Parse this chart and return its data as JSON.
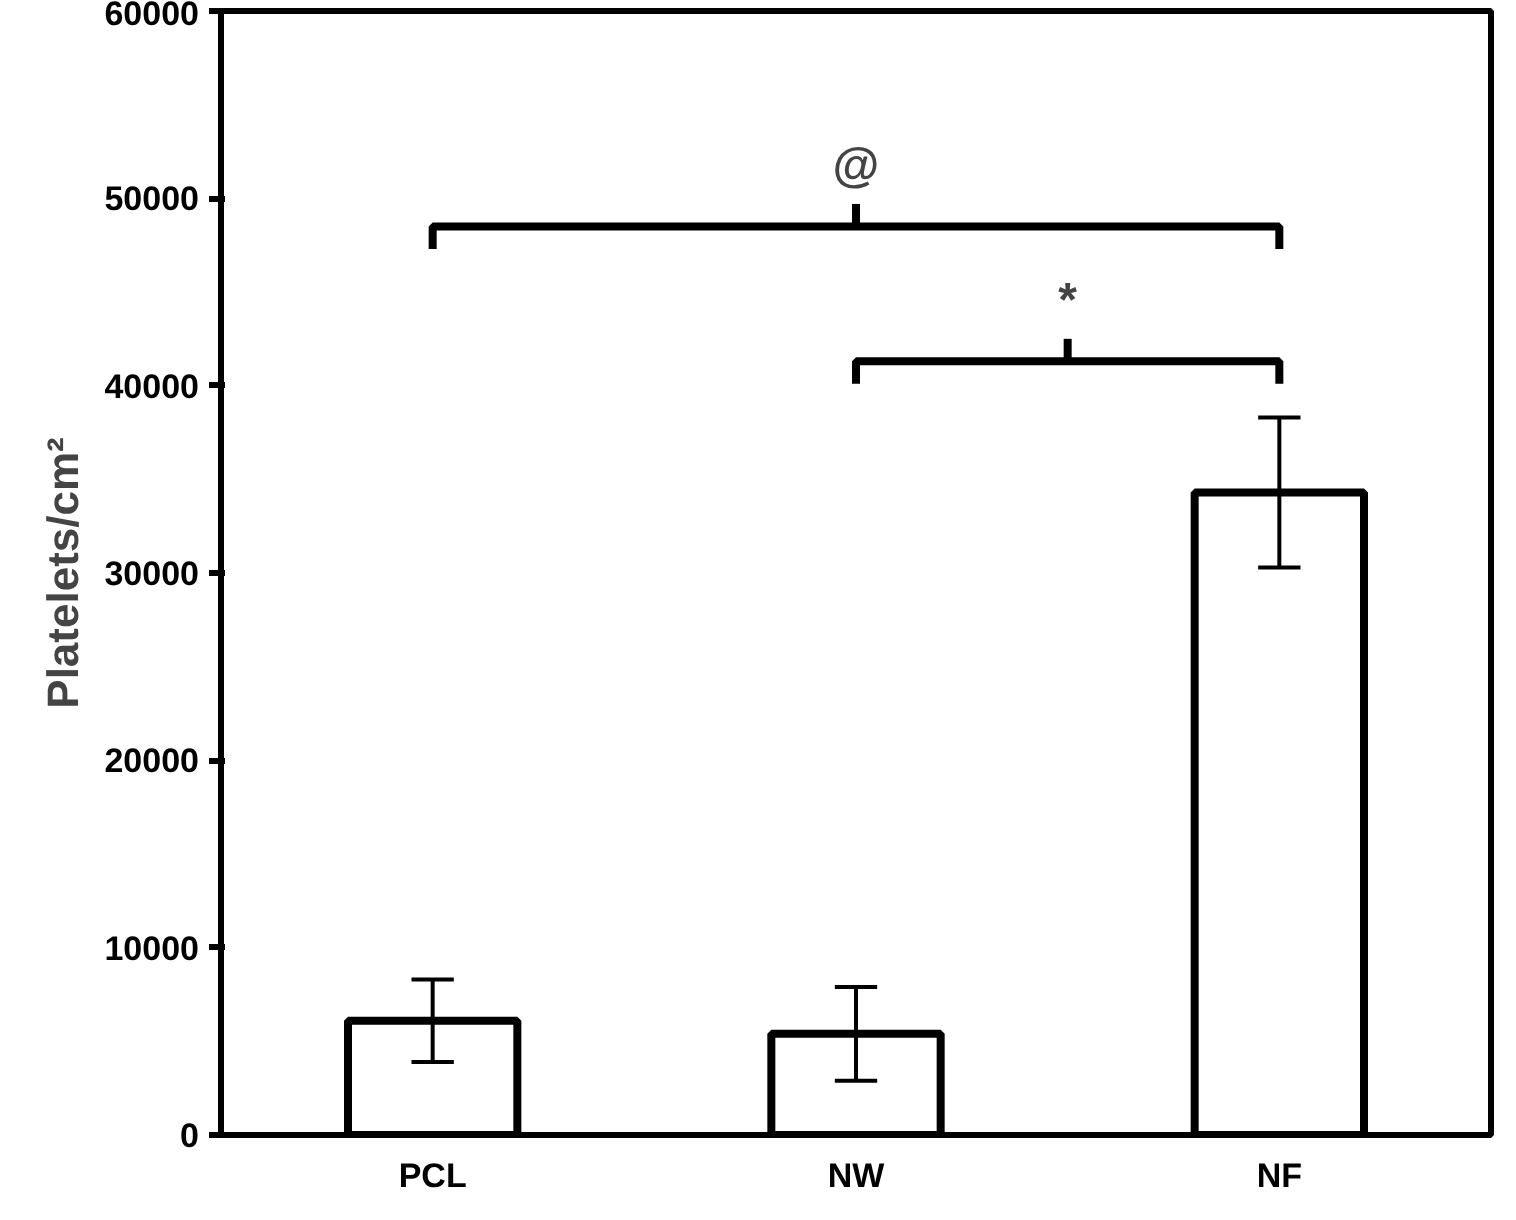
{
  "chart_data": {
    "type": "bar",
    "ylabel": "Platelets/cm²",
    "categories": [
      "PCL",
      "NW",
      "NF"
    ],
    "values": [
      6100,
      5400,
      34300
    ],
    "errors": [
      2200,
      2500,
      4000
    ],
    "color": "#ffffff",
    "ylim": [
      0,
      60000
    ],
    "yticks": [
      0,
      10000,
      20000,
      30000,
      40000,
      50000,
      60000
    ],
    "grid": false,
    "annotations": [
      "@",
      "*"
    ]
  }
}
